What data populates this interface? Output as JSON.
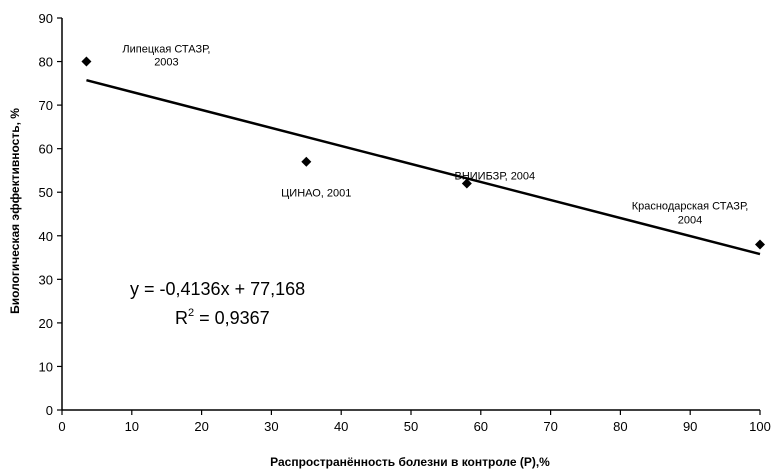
{
  "chart_data": {
    "type": "scatter",
    "title": "",
    "xlabel": "Распространённость болезни в контроле (P),%",
    "ylabel": "Биологическая эффективность, %",
    "xlim": [
      0,
      100
    ],
    "ylim": [
      0,
      90
    ],
    "x_ticks": [
      0,
      10,
      20,
      30,
      40,
      50,
      60,
      70,
      80,
      90,
      100
    ],
    "y_ticks": [
      0,
      10,
      20,
      30,
      40,
      50,
      60,
      70,
      80,
      90
    ],
    "grid": false,
    "legend": "none",
    "marker": "diamond",
    "marker_color": "#000000",
    "points": [
      {
        "x": 3.5,
        "y": 80,
        "label_lines": [
          "Липецкая СТАЗР,",
          "2003"
        ]
      },
      {
        "x": 35,
        "y": 57,
        "label_lines": [
          "ЦИНАО, 2001"
        ]
      },
      {
        "x": 58,
        "y": 52,
        "label_lines": [
          "ВНИИБЗР, 2004"
        ]
      },
      {
        "x": 100,
        "y": 38,
        "label_lines": [
          "Краснодарская СТАЗР,",
          "2004"
        ]
      }
    ],
    "trendline": {
      "type": "linear",
      "slope": -0.4136,
      "intercept": 77.168,
      "x_range": [
        3.5,
        100
      ],
      "equation": "y = -0,4136x + 77,168",
      "r2_label": "R",
      "r2_sup": "2",
      "r2_value": " = 0,9367"
    }
  }
}
